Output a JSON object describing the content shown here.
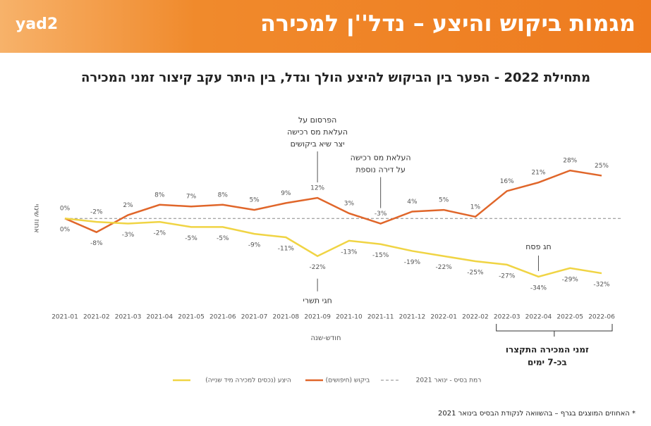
{
  "header": {
    "logo": "yad2",
    "title": "מגמות ביקוש והיצע – נדל''ן למכירה"
  },
  "subtitle": "מתחילת 2022 - הפער בין הביקוש להיצע הולך וגדל, בין היתר עקב קיצור זמני המכירה",
  "chart_data": {
    "type": "line",
    "y_label": "אחוז שינוי",
    "x_label": "חודש-שנה",
    "categories": [
      "2021-01",
      "2021-02",
      "2021-03",
      "2021-04",
      "2021-05",
      "2021-06",
      "2021-07",
      "2021-08",
      "2021-09",
      "2021-10",
      "2021-11",
      "2021-12",
      "2022-01",
      "2022-02",
      "2022-03",
      "2022-04",
      "2022-05",
      "2022-06"
    ],
    "series": [
      {
        "name": "ביקוש (חיפושים)",
        "color": "#e0662a",
        "values": [
          0,
          -8,
          2,
          8,
          7,
          8,
          5,
          9,
          12,
          3,
          -3,
          4,
          5,
          1,
          16,
          21,
          28,
          25
        ],
        "value_labels": [
          "0%",
          "-8%",
          "2%",
          "8%",
          "7%",
          "8%",
          "5%",
          "9%",
          "12%",
          "3%",
          "-3%",
          "4%",
          "5%",
          "1%",
          "16%",
          "21%",
          "28%",
          "25%"
        ]
      },
      {
        "name": "היצע (נכסים למכירה מיד שנייה)",
        "color": "#f0d444",
        "values": [
          0,
          -2,
          -3,
          -2,
          -5,
          -5,
          -9,
          -11,
          -22,
          -13,
          -15,
          -19,
          -22,
          -25,
          -27,
          -34,
          -29,
          -32
        ],
        "value_labels": [
          "0%",
          "-2%",
          "-3%",
          "-2%",
          "-5%",
          "-5%",
          "-9%",
          "-11%",
          "-22%",
          "-13%",
          "-15%",
          "-19%",
          "-22%",
          "-25%",
          "-27%",
          "-34%",
          "-29%",
          "-32%"
        ]
      }
    ],
    "baseline": {
      "name": "רמת בסיס - ינואר 2021",
      "value": 0,
      "color": "#888888"
    },
    "ylim": [
      -55,
      70
    ],
    "annotations": [
      {
        "category": "2021-09",
        "series": 0,
        "lines": [
          "הפרסום על",
          "העלאת מס רכישה",
          "יצר שיא ביקושים"
        ]
      },
      {
        "category": "2021-11",
        "series": 0,
        "lines": [
          "העלאת מס רכישה",
          "על דירה נוספת"
        ]
      },
      {
        "category": "2021-09",
        "series": 1,
        "lines": [
          "חגי תשרי"
        ]
      },
      {
        "category": "2022-04",
        "series": 1,
        "lines": [
          "חג פסח"
        ]
      }
    ],
    "bracket": {
      "from": "2022-03",
      "to": "2022-06",
      "lines": [
        "זמני המכירה התקצרו",
        "בכ-7 ימים"
      ]
    }
  },
  "footnote": "* האחוזים המוצגים בגרף – בהשוואה לנקודת הבסיס בינואר 2021"
}
